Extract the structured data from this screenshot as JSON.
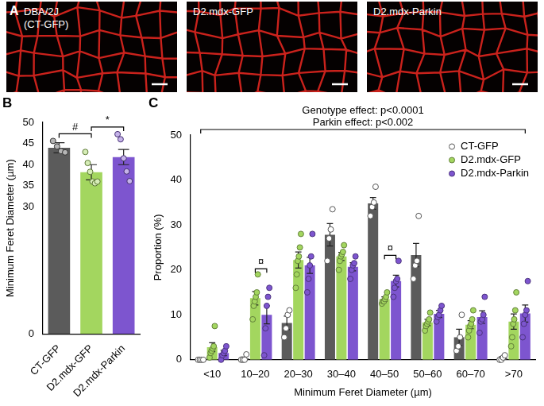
{
  "panel_a": {
    "panel_label": "A",
    "images": [
      {
        "label": [
          "DBA/2J",
          "(CT-GFP)"
        ]
      },
      {
        "label": [
          "D2.mdx-GFP"
        ]
      },
      {
        "label": [
          "D2.mdx-Parkin"
        ]
      }
    ]
  },
  "chart_data": [
    {
      "panel_label": "B",
      "type": "bar",
      "categories": [
        "CT-GFP",
        "D2.mdx-GFP",
        "D2.mdx-Parkin"
      ],
      "values": [
        44.0,
        38.2,
        41.8
      ],
      "errors": [
        1.2,
        1.8,
        1.8
      ],
      "points": [
        [
          45.6,
          44.3,
          43.2,
          42.9
        ],
        [
          43.0,
          40.4,
          38.3,
          36.0,
          35.6,
          36.0
        ],
        [
          47.2,
          46.0,
          41.5,
          38.4,
          36.1
        ]
      ],
      "colors": [
        "#5b5b5b",
        "#a3d65f",
        "#7d55cf"
      ],
      "y_label": "Minimum Feret Diameter (µm)",
      "ylim": [
        0,
        50
      ],
      "yticks": [
        0,
        30,
        35,
        40,
        45,
        50
      ],
      "grid": false,
      "annotations": [
        {
          "text": "#",
          "from": "CT-GFP",
          "to": "D2.mdx-GFP"
        },
        {
          "text": "*",
          "from": "D2.mdx-GFP",
          "to": "D2.mdx-Parkin"
        }
      ]
    },
    {
      "panel_label": "C",
      "type": "bar",
      "categories": [
        "<10",
        "10–20",
        "20–30",
        "30–40",
        "40–50",
        "50–60",
        "60–70",
        ">70"
      ],
      "series": [
        {
          "name": "CT-GFP",
          "color": "#5b5b5b",
          "marker": "open circle",
          "values": [
            0,
            0.3,
            8.2,
            27.8,
            34.8,
            23.3,
            5.0,
            0.4
          ],
          "errors": [
            0,
            0.3,
            1.5,
            2.5,
            1.3,
            2.6,
            1.8,
            0.3
          ],
          "points": [
            [
              0,
              0,
              0,
              0
            ],
            [
              0,
              0,
              0,
              1.2
            ],
            [
              5,
              7,
              10,
              11
            ],
            [
              22,
              27,
              29,
              33.5
            ],
            [
              32,
              34,
              35,
              38.5
            ],
            [
              18,
              21,
              22,
              32
            ],
            [
              2,
              3,
              5,
              10
            ],
            [
              0,
              0,
              0.5,
              1
            ]
          ]
        },
        {
          "name": "D2.mdx-GFP",
          "color": "#a3d65f",
          "marker": "circle",
          "values": [
            2.8,
            13.7,
            22.2,
            23.0,
            13.5,
            8.3,
            7.8,
            8.5
          ],
          "errors": [
            1.0,
            1.5,
            1.8,
            0.9,
            0.5,
            0.7,
            0.9,
            1.7
          ],
          "points": [
            [
              0.5,
              1.5,
              2,
              2.5,
              3,
              7.5
            ],
            [
              9,
              12,
              13,
              14,
              15,
              19
            ],
            [
              16,
              19,
              22,
              23,
              25,
              28
            ],
            [
              20,
              22,
              23,
              23.5,
              24,
              25.5
            ],
            [
              12.5,
              13,
              13,
              13.5,
              14,
              15
            ],
            [
              6.5,
              7.5,
              8,
              8.5,
              9,
              10.5
            ],
            [
              5,
              6.5,
              7.5,
              8,
              9,
              11
            ],
            [
              3,
              5,
              8,
              9,
              11,
              15
            ]
          ]
        },
        {
          "name": "D2.mdx-Parkin",
          "color": "#7d55cf",
          "marker": "circle",
          "values": [
            1.5,
            10.0,
            21.0,
            20.7,
            17.5,
            10.2,
            9.5,
            10.3
          ],
          "errors": [
            0.6,
            2.0,
            1.8,
            0.9,
            1.3,
            0.8,
            1.4,
            1.9
          ],
          "points": [
            [
              0,
              1,
              1.5,
              2,
              3
            ],
            [
              1,
              7,
              12,
              14,
              16
            ],
            [
              15,
              18,
              21,
              23,
              28
            ],
            [
              18,
              20,
              21,
              21.5,
              23
            ],
            [
              14,
              16,
              17.5,
              18,
              22
            ],
            [
              8.5,
              9.5,
              10,
              11,
              12
            ],
            [
              6,
              8.5,
              9,
              10,
              14
            ],
            [
              5,
              8,
              10,
              11,
              17.5
            ]
          ]
        }
      ],
      "x_label": "Minimum Feret Diameter (µm)",
      "y_label": "Proportion (%)",
      "ylim": [
        0,
        50
      ],
      "yticks": [
        0,
        10,
        20,
        30,
        40,
        50
      ],
      "grid": false,
      "legend": "upper right",
      "annotations": [
        {
          "text": [
            "Genotype effect: p<0.0001",
            "Parkin effect: p<0.002"
          ],
          "from": "<10",
          "to": ">70"
        },
        {
          "text": "¤",
          "category": "10–20",
          "from": "D2.mdx-GFP",
          "to": "D2.mdx-Parkin"
        },
        {
          "text": "¤",
          "category": "40–50",
          "from": "D2.mdx-GFP",
          "to": "D2.mdx-Parkin"
        }
      ]
    }
  ]
}
